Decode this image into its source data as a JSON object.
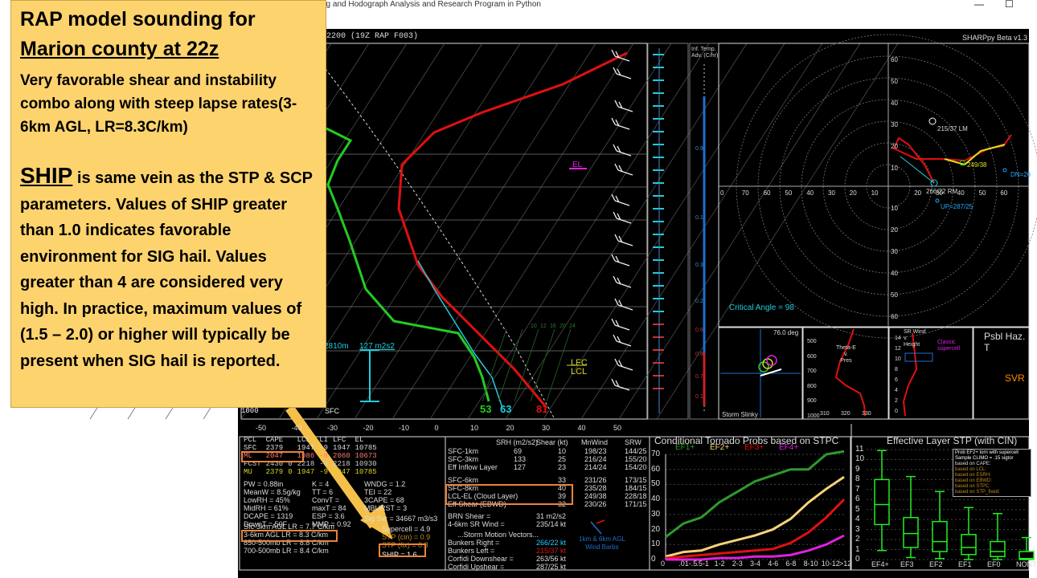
{
  "window": {
    "title": "ng and Hodograph Analysis and Research Program in Python",
    "minimize_glyph": "—",
    "maximize_glyph": "☐"
  },
  "header": {
    "left": "/2200  (19Z  RAP  F003)",
    "right": "SHARPpy Beta v1.3"
  },
  "callout": {
    "title_line1": "RAP model sounding for",
    "title_line2": "Marion county at 22z",
    "para1": "Very favorable shear and instability combo along with steep lapse rates(3-6km AGL, LR=8.3C/km)",
    "ship_word": "SHIP",
    "para2": " is same vein as the STP & SCP parameters.  Values of SHIP greater than 1.0 indicates favorable environment for SIG hail. Values greater than 4 are considered very high. In practice, maximum values of (1.5 – 2.0) or higher will typically be present when SIG hail is reported."
  },
  "skewt": {
    "x_ticks": [
      "-50",
      "-40",
      "-30",
      "-20",
      "-10",
      "0",
      "10",
      "20",
      "30",
      "40",
      "50"
    ],
    "bottom_pressure": "1000",
    "surface_label": "SFC",
    "dewpoint_value": "53",
    "wetbulb_value": "63",
    "temperature_value": "81",
    "el_label": "EL",
    "lfc_label": "LFC",
    "lcl_label": "LCL",
    "height_text": "2810m",
    "srh_text": "127 m2s2",
    "mix_ratios": [
      "10",
      "12",
      "16",
      "20",
      "24"
    ]
  },
  "inflow": {
    "title_line1": "Inf. Temp.",
    "title_line2": "Adv. (C/hr)",
    "values": [
      "0.9",
      "0.1",
      "0.3",
      "0.2",
      "0.6",
      "0.8",
      "0.7",
      "0.1"
    ]
  },
  "hodograph": {
    "rings_top": [
      "60",
      "50",
      "40",
      "30",
      "20",
      "10"
    ],
    "x_ticks": [
      "0",
      "70",
      "60",
      "50",
      "40",
      "30",
      "20",
      "10",
      "",
      "20",
      "30",
      "40",
      "50",
      "60"
    ],
    "rings_bottom": [
      "10",
      "20",
      "30",
      "40",
      "50",
      "60"
    ],
    "lm_label": "215/37 LM",
    "rm_label": "266/22 RM",
    "up_label": "UP=287/25",
    "mean_label": "249/38",
    "dn_label": "DN=26",
    "critical_angle": "Critical Angle = 98"
  },
  "slinky": {
    "deg": "76.0 deg",
    "label": "Storm Slinky"
  },
  "theta": {
    "title_line1": "Theta-E",
    "title_line2": "v.",
    "title_line3": "Pres",
    "y_ticks": [
      "500",
      "600",
      "700",
      "800",
      "900",
      "1000"
    ],
    "x_ticks": [
      "310",
      "320",
      "330"
    ]
  },
  "srwind": {
    "title_line1": "SR Wind",
    "title_line2": "v.",
    "title_line3": "Height",
    "y_ticks": [
      "14",
      "12",
      "10",
      "8",
      "6",
      "4",
      "2",
      "0"
    ],
    "red_label_line1": "Classic",
    "red_label_line2": "supercell"
  },
  "hazard": {
    "title": "Psbl Haz. T",
    "value": "SVR"
  },
  "parcel_table": {
    "headers": [
      "PCL",
      "CAPE",
      "",
      "LCL",
      "LI",
      "LFC",
      "EL"
    ],
    "rows": [
      [
        "SFC",
        "2379",
        "",
        "1947",
        "-9",
        "1947",
        "10785"
      ],
      [
        "ML",
        "2047",
        "",
        "1986",
        "-8",
        "2060",
        "10673"
      ],
      [
        "FCST",
        "2430",
        "0",
        "2218",
        "-9",
        "2218",
        "10930"
      ],
      [
        "MU",
        "2379",
        "0",
        "1947",
        "-9",
        "1947",
        "10785"
      ]
    ]
  },
  "thermo": {
    "col1": [
      "PW = 0.88in",
      "MeanW = 8.5g/kg",
      "LowRH = 45%",
      "MidRH = 61%",
      "DCAPE = 1319",
      "DownT = 50F"
    ],
    "col2": [
      "K = 4",
      "TT = 6",
      "ConvT =",
      "maxT = 84",
      "ESP = 3.6",
      "MMP = 0.92"
    ],
    "col3": [
      "WNDG = 1.2",
      "TEI = 22",
      "3CAPE = 68",
      "MBURST = 3",
      "",
      ""
    ],
    "sigsvr": "Sig Svr = 34667 m3/s3",
    "lapse_rates": [
      "Sfc-3km AGL LR = 7.7 C/km",
      "3-6km AGL LR = 8.3 C/km",
      "850-500mb LR = 8.8 C/km",
      "700-500mb LR = 8.4 C/km"
    ]
  },
  "indices": {
    "supercell": "Supercell = 4.9",
    "stp": "STP (cin) = 0.9",
    "stp_fixed": "STP (fix) = 0.8",
    "ship": "SHIP = 1.6"
  },
  "kinematics": {
    "headers": [
      "SRH (m2/s2)",
      "Shear (kt)",
      "MnWind",
      "SRW"
    ],
    "rows": [
      [
        "SFC-1km",
        "69",
        "10",
        "198/23",
        "144/25"
      ],
      [
        "SFC-3km",
        "133",
        "25",
        "216/24",
        "155/20"
      ],
      [
        "Eff Inflow Layer",
        "127",
        "23",
        "214/24",
        "154/20"
      ],
      [
        "SFC-6km",
        "",
        "33",
        "231/26",
        "173/15"
      ],
      [
        "SFC-8km",
        "",
        "40",
        "235/28",
        "184/15"
      ],
      [
        "LCL-EL (Cloud Layer)",
        "",
        "39",
        "249/38",
        "228/18"
      ],
      [
        "Eff Shear (EBWD)",
        "",
        "32",
        "230/26",
        "171/15"
      ]
    ],
    "brn_shear": "BRN Shear =",
    "brn_value": "31 m2/s2",
    "sr_wind": "4-6km SR Wind =",
    "sr_value": "235/14 kt",
    "vectors_title": "...Storm Motion Vectors...",
    "vectors": [
      [
        "Bunkers Right =",
        "266/22 kt"
      ],
      [
        "Bunkers Left =",
        "215/37 kt"
      ],
      [
        "Corfidi Downshear =",
        "263/56 kt"
      ],
      [
        "Corfidi Upshear =",
        "287/25 kt"
      ]
    ],
    "barbs_line1": "1km & 6km AGL",
    "barbs_line2": "Wind Barbs"
  },
  "colors": {
    "callout_bg": "#fdd36e",
    "highlight_orange": "#e8843a",
    "temp": "#e01010",
    "dewpoint": "#22cc22",
    "cyan": "#22ccdd"
  },
  "chart_data": [
    {
      "type": "line",
      "title": "Conditional Tornado Probs based on STPC",
      "categories": [
        "0",
        ".01-.5",
        ".5-1",
        "1-2",
        "2-3",
        "3-4",
        "4-6",
        "6-8",
        "8-10",
        "10-12",
        ">12"
      ],
      "ylim": [
        0,
        70
      ],
      "y_ticks": [
        "0",
        "10",
        "20",
        "30",
        "40",
        "50",
        "60",
        "70"
      ],
      "series": [
        {
          "name": "EF1+",
          "color": "#2d9a2d",
          "values": [
            15,
            24,
            28,
            38,
            45,
            52,
            56,
            60,
            60,
            70,
            72
          ]
        },
        {
          "name": "EF2+",
          "color": "#f6d27a",
          "values": [
            2,
            5,
            6,
            10,
            13,
            16,
            20,
            27,
            38,
            47,
            55
          ]
        },
        {
          "name": "EF3+",
          "color": "#e01010",
          "values": [
            1,
            2,
            3,
            4,
            5,
            6,
            7,
            11,
            18,
            28,
            40
          ]
        },
        {
          "name": "EF4+",
          "color": "#e020e0",
          "values": [
            0,
            0,
            0,
            1,
            1,
            2,
            2,
            3,
            6,
            10,
            16
          ]
        }
      ]
    },
    {
      "type": "box",
      "title": "Effective Layer STP (with CIN)",
      "categories": [
        "EF4+",
        "EF3",
        "EF2",
        "EF1",
        "EF0",
        "NONT"
      ],
      "ylim": [
        0,
        11
      ],
      "y_ticks": [
        "0",
        "1",
        "2",
        "3",
        "4",
        "5",
        "6",
        "7",
        "8",
        "9",
        "10",
        "11"
      ],
      "boxes": [
        {
          "low": 0.9,
          "q1": 3.5,
          "med": 5.5,
          "q3": 8.0,
          "high": 10.9
        },
        {
          "low": 0.2,
          "q1": 1.2,
          "med": 2.6,
          "q3": 4.2,
          "high": 8.3
        },
        {
          "low": 0.1,
          "q1": 0.8,
          "med": 1.8,
          "q3": 3.8,
          "high": 6.8
        },
        {
          "low": 0.0,
          "q1": 0.5,
          "med": 1.2,
          "q3": 2.5,
          "high": 5.2
        },
        {
          "low": 0.0,
          "q1": 0.3,
          "med": 0.8,
          "q3": 1.8,
          "high": 4.6
        },
        {
          "low": 0.0,
          "q1": 0.0,
          "med": 0.1,
          "q3": 0.8,
          "high": 2.2
        }
      ],
      "legend_lines": [
        "Prob EF2+ torn with supercell",
        "Sample CLIMO = .15 sigtor",
        "based on CAPE:",
        "based on LCL:",
        "based on ESRH:",
        "based on EBWD:",
        "based on STPC:",
        "based on STP_fixed:"
      ]
    }
  ]
}
